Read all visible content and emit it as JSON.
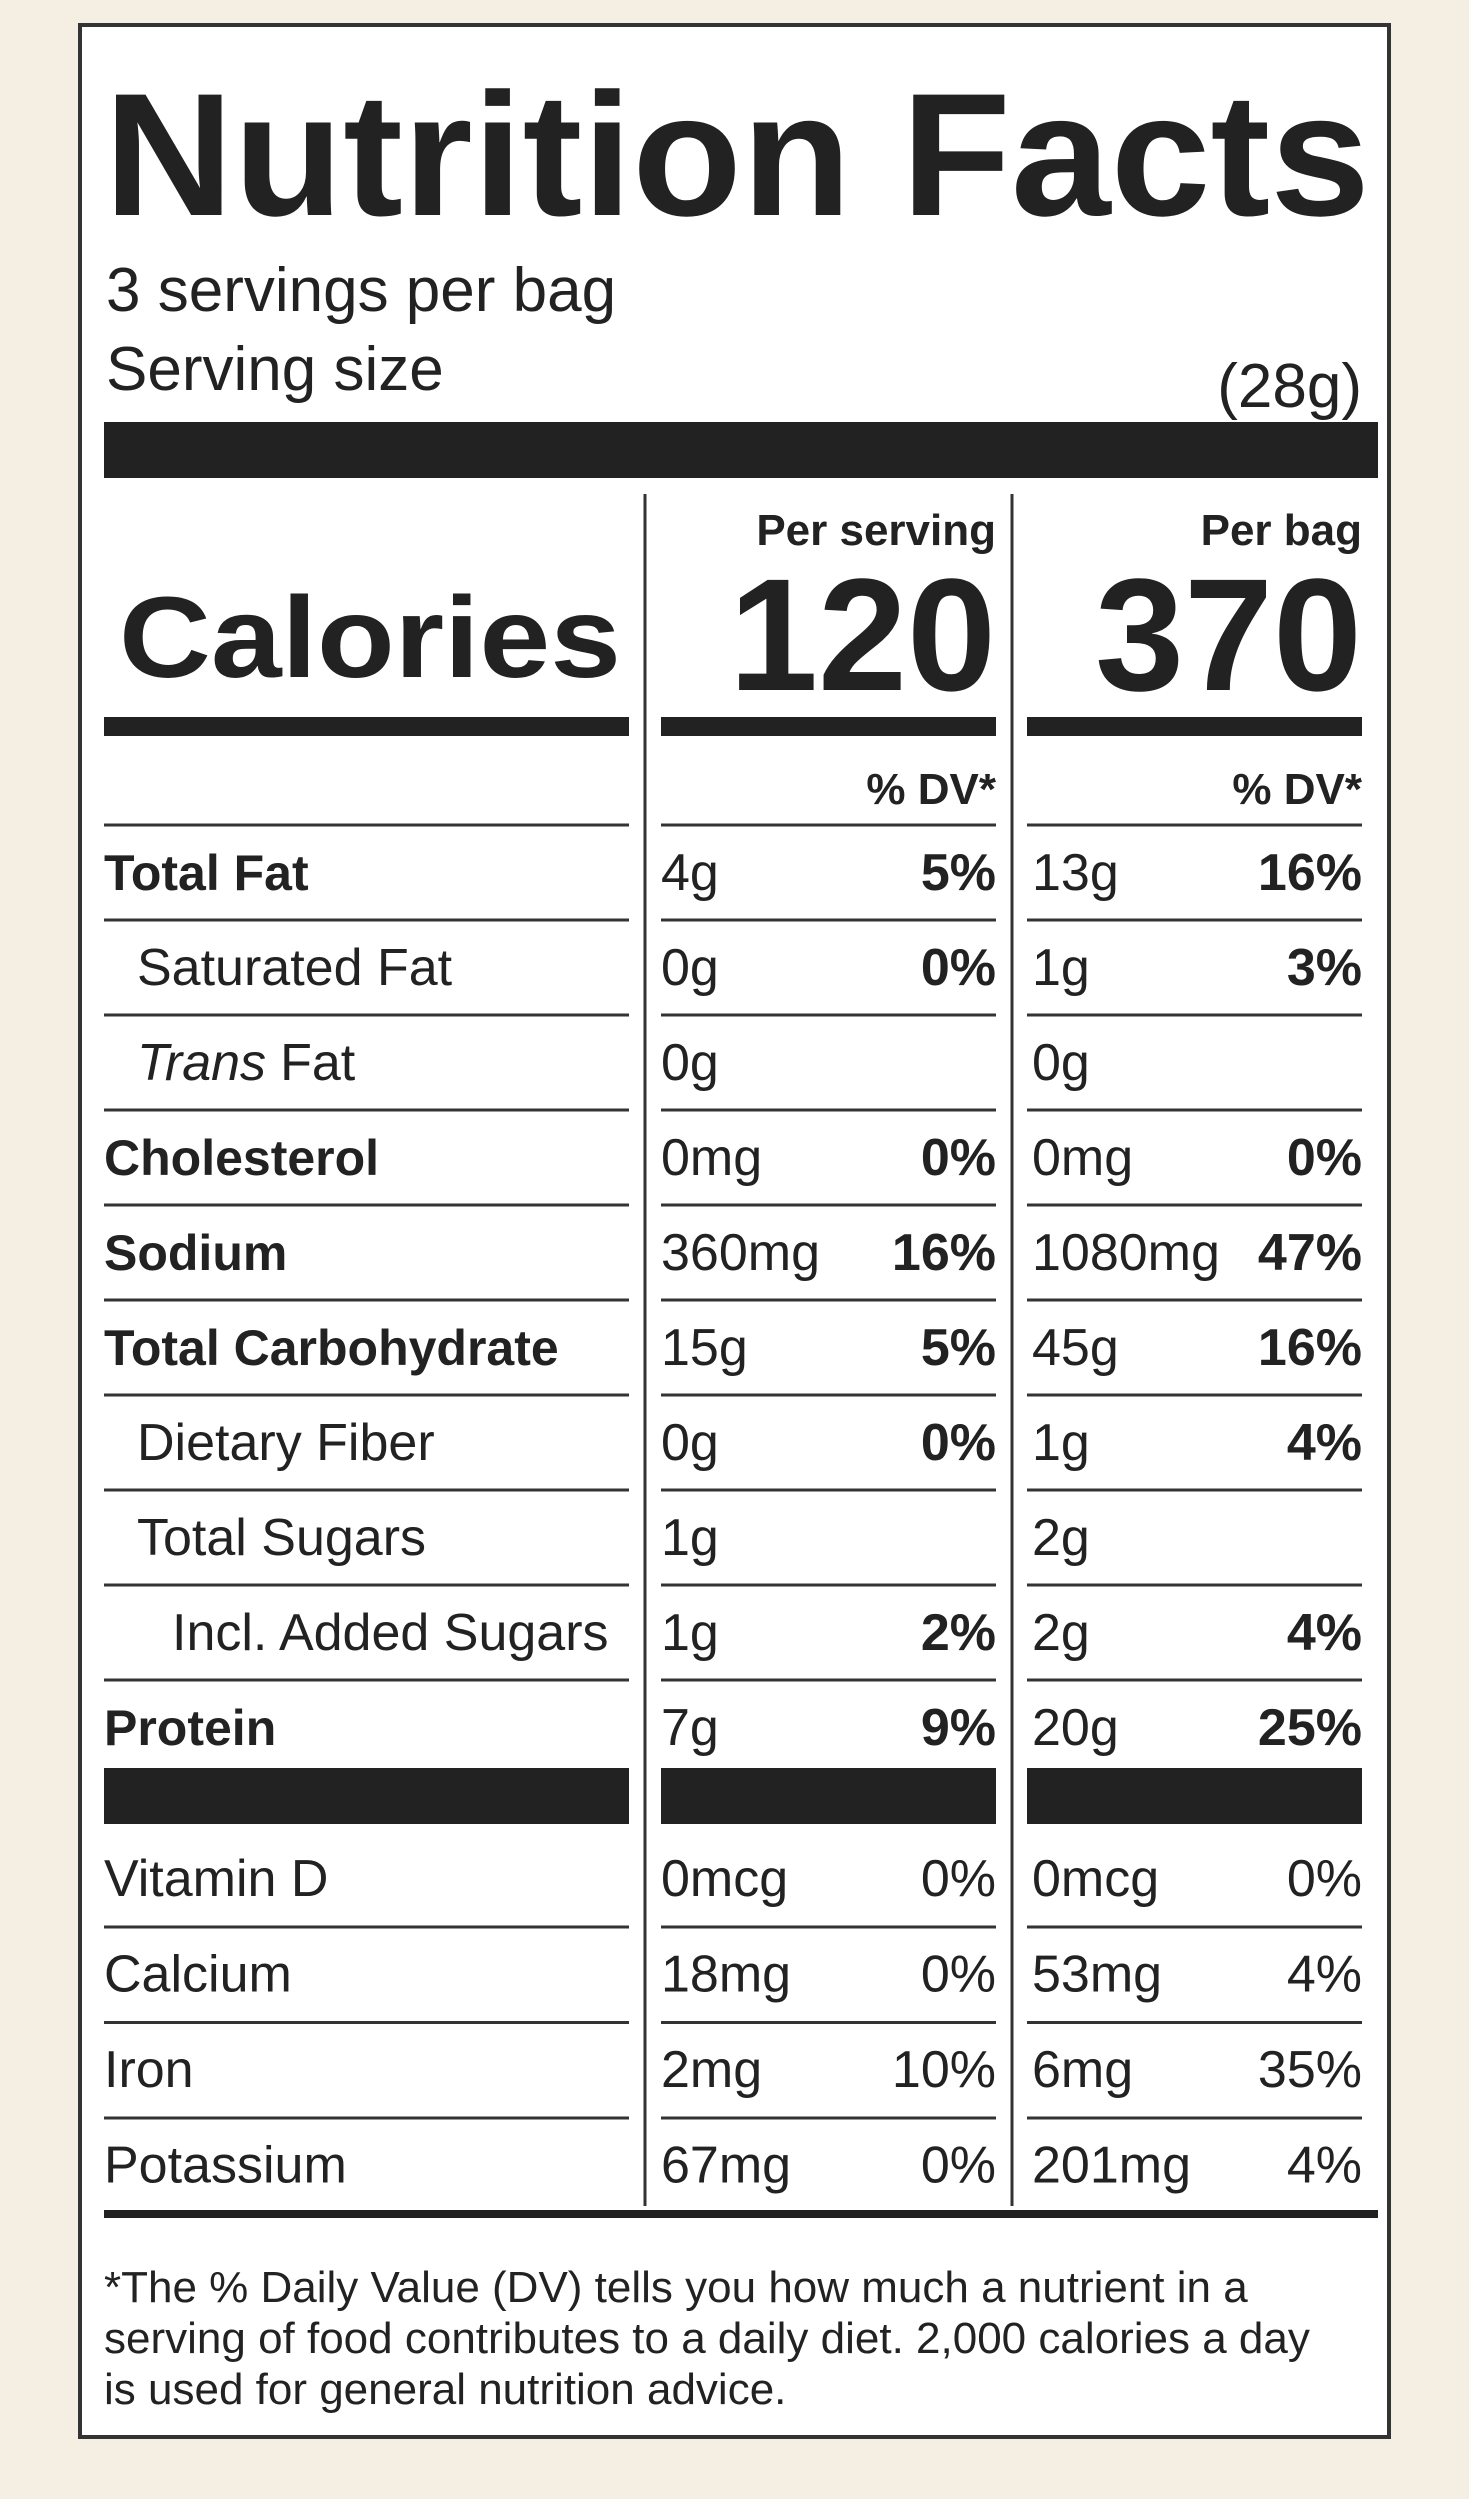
{
  "header": {
    "title": "Nutrition Facts",
    "servings": "3 servings per bag",
    "serving_size_label": "Serving size",
    "serving_size": "(28g)"
  },
  "calories": {
    "label": "Calories",
    "columns": [
      {
        "heading": "Per serving",
        "value": 120,
        "dv_heading": "% DV*"
      },
      {
        "heading": "Per bag",
        "value": 370,
        "dv_heading": "% DV*"
      }
    ]
  },
  "nutrients": [
    {
      "name": "Total Fat",
      "bold": true,
      "indent": 0,
      "per_serving": [
        "4g",
        "5%"
      ],
      "per_bag": [
        "13g",
        "16%"
      ]
    },
    {
      "name": "Saturated Fat",
      "bold": false,
      "indent": 1,
      "per_serving": [
        "0g",
        "0%"
      ],
      "per_bag": [
        "1g",
        "3%"
      ]
    },
    {
      "name_italic": "Trans",
      "name": "Fat",
      "bold": false,
      "indent": 1,
      "per_serving": [
        "0g"
      ],
      "per_bag": [
        "0g"
      ]
    },
    {
      "name": "Cholesterol",
      "bold": true,
      "indent": 0,
      "per_serving": [
        "0mg",
        "0%"
      ],
      "per_bag": [
        "0mg",
        "0%"
      ]
    },
    {
      "name": "Sodium",
      "bold": true,
      "indent": 0,
      "per_serving": [
        "360mg",
        "16%"
      ],
      "per_bag": [
        "1080mg",
        "47%"
      ]
    },
    {
      "name": "Total Carbohydrate",
      "bold": true,
      "indent": 0,
      "per_serving": [
        "15g",
        "5%"
      ],
      "per_bag": [
        "45g",
        "16%"
      ]
    },
    {
      "name": "Dietary Fiber",
      "bold": false,
      "indent": 1,
      "per_serving": [
        "0g",
        "0%"
      ],
      "per_bag": [
        "1g",
        "4%"
      ]
    },
    {
      "name": "Total Sugars",
      "bold": false,
      "indent": 1,
      "per_serving": [
        "1g"
      ],
      "per_bag": [
        "2g"
      ]
    },
    {
      "name": "Incl. Added Sugars",
      "bold": false,
      "indent": 2,
      "per_serving": [
        "1g",
        "2%"
      ],
      "per_bag": [
        "2g",
        "4%"
      ]
    },
    {
      "name": "Protein",
      "bold": true,
      "indent": 0,
      "per_serving": [
        "7g",
        "9%"
      ],
      "per_bag": [
        "20g",
        "25%"
      ]
    }
  ],
  "vitamins": [
    {
      "name": "Vitamin D",
      "per_serving": [
        "0mcg",
        "0%"
      ],
      "per_bag": [
        "0mcg",
        "0%"
      ]
    },
    {
      "name": "Calcium",
      "per_serving": [
        "18mg",
        "0%"
      ],
      "per_bag": [
        "53mg",
        "4%"
      ]
    },
    {
      "name": "Iron",
      "per_serving": [
        "2mg",
        "10%"
      ],
      "per_bag": [
        "6mg",
        "35%"
      ]
    },
    {
      "name": "Potassium",
      "per_serving": [
        "67mg",
        "0%"
      ],
      "per_bag": [
        "201mg",
        "4%"
      ]
    }
  ],
  "footnote": [
    "*The % Daily Value (DV) tells you how much a nutrient in a",
    "serving of food contributes to a daily diet. 2,000 calories a day",
    "is used for general nutrition advice."
  ]
}
